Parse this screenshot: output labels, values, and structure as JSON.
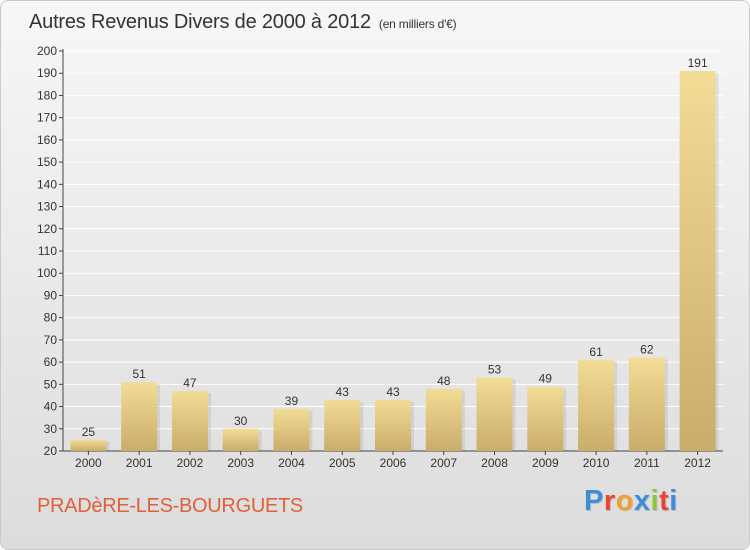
{
  "header": {
    "title": "Autres Revenus Divers de 2000 à 2012",
    "unit": "(en milliers d'€)"
  },
  "footer": {
    "city": "PRADèRE-LES-BOURGUETS",
    "logo": {
      "text": "Proxiti",
      "colors": [
        "#3a8fd8",
        "#e8443a",
        "#f0a02c",
        "#3a8fd8",
        "#8cc63f",
        "#e8443a",
        "#3a8fd8"
      ]
    }
  },
  "colors": {
    "bar_light": "#f2dc96",
    "bar_dark": "#c9ad6a",
    "grid": "#ffffff",
    "axis": "#444444",
    "text": "#333333",
    "city": "#e0603a"
  },
  "chart_data": {
    "type": "bar",
    "categories": [
      "2000",
      "2001",
      "2002",
      "2003",
      "2004",
      "2005",
      "2006",
      "2007",
      "2008",
      "2009",
      "2010",
      "2011",
      "2012"
    ],
    "values": [
      25,
      51,
      47,
      30,
      39,
      43,
      43,
      48,
      53,
      49,
      61,
      62,
      191
    ],
    "title": "Autres Revenus Divers de 2000 à 2012",
    "unit": "(en milliers d'€)",
    "xlabel": "",
    "ylabel": "",
    "ylim": [
      20,
      200
    ],
    "ytick_step": 10,
    "grid": true,
    "data_labels": true,
    "legend": false
  }
}
